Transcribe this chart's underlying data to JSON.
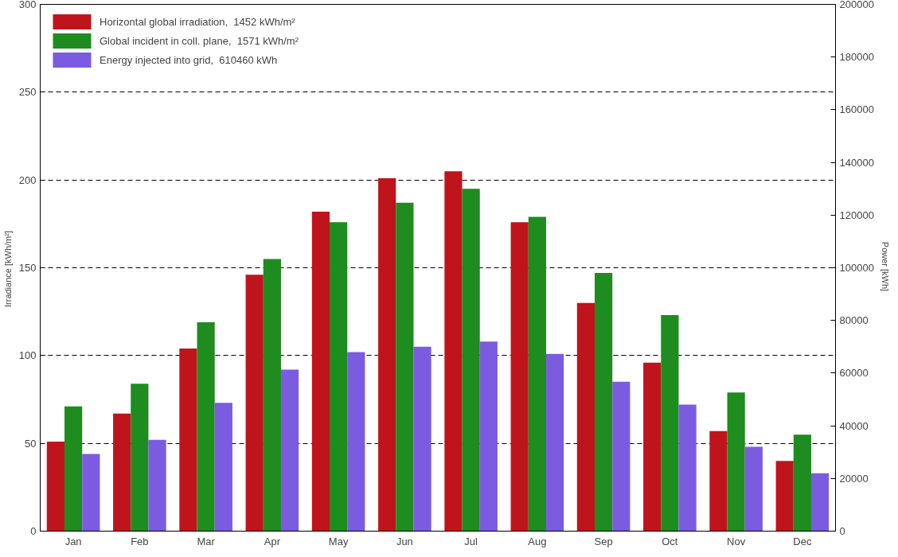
{
  "chart_data": {
    "type": "bar",
    "ylabel": "Irradiance  [kWh/m²]",
    "y2label": "Power  [kWh]",
    "categories": [
      "Jan",
      "Feb",
      "Mar",
      "Apr",
      "May",
      "Jun",
      "Jul",
      "Aug",
      "Sep",
      "Oct",
      "Nov",
      "Dec"
    ],
    "series": [
      {
        "name": "Horizontal global irradiation,  1452 kWh/m²",
        "color": "#c0141c",
        "values": [
          51,
          67,
          104,
          146,
          182,
          201,
          205,
          176,
          130,
          96,
          57,
          40
        ]
      },
      {
        "name": "Global incident in coll. plane,  1571 kWh/m²",
        "color": "#1e8c1e",
        "values": [
          71,
          84,
          119,
          155,
          176,
          187,
          195,
          179,
          147,
          123,
          79,
          55
        ]
      },
      {
        "name": "Energy injected into grid,  610460 kWh",
        "color": "#7b5ce0",
        "axis": "y2",
        "values": [
          29300,
          34700,
          48700,
          61300,
          68000,
          70000,
          72000,
          67300,
          56700,
          48000,
          32000,
          22000
        ]
      }
    ],
    "ylim": [
      0,
      300
    ],
    "yticks": [
      0,
      50,
      100,
      150,
      200,
      250,
      300
    ],
    "y2lim": [
      0,
      200000
    ],
    "y2ticks": [
      0,
      20000,
      40000,
      60000,
      80000,
      100000,
      120000,
      140000,
      160000,
      180000,
      200000
    ],
    "grid": "y",
    "legend": "top left"
  }
}
